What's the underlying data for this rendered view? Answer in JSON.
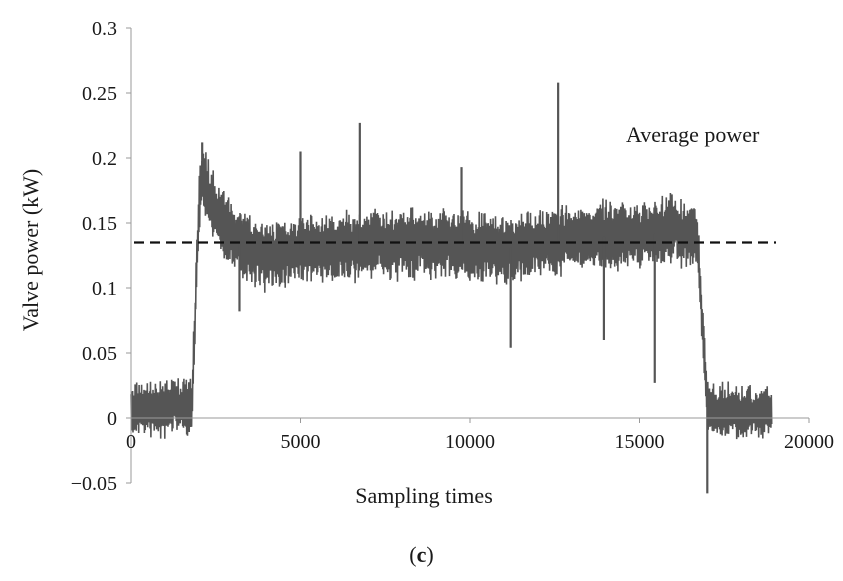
{
  "chart_data": {
    "type": "line",
    "ylabel": "Valve power (kW)",
    "xlabel": "Sampling times",
    "xlim": [
      0,
      20000
    ],
    "ylim": [
      -0.05,
      0.3
    ],
    "x_ticks": [
      "0",
      "5000",
      "10000",
      "15000",
      "20000"
    ],
    "y_ticks": [
      "0.3",
      "0.25",
      "0.2",
      "0.15",
      "0.1",
      "0.05",
      "0",
      "−0.05"
    ],
    "grid": false,
    "series": [
      {
        "x": [
          0,
          1800,
          2000,
          2100,
          2300,
          2600,
          3000,
          3500,
          4000,
          5000,
          6000,
          7000,
          8000,
          9000,
          10000,
          11000,
          12000,
          13000,
          14000,
          15000,
          16000,
          16700,
          17000,
          17200,
          18000,
          18900
        ],
        "y": [
          0.005,
          0.01,
          0.16,
          0.19,
          0.17,
          0.155,
          0.14,
          0.13,
          0.125,
          0.13,
          0.132,
          0.133,
          0.135,
          0.135,
          0.132,
          0.13,
          0.135,
          0.138,
          0.14,
          0.14,
          0.145,
          0.14,
          0.01,
          0.005,
          0.005,
          0.005
        ],
        "color": "#555555"
      },
      {
        "x": [
          0,
          20000
        ],
        "y": [
          0.135,
          0.135
        ],
        "style": "dashed",
        "color": "#111111"
      }
    ],
    "spikes": [
      {
        "x": 2100,
        "y": 0.212
      },
      {
        "x": 3200,
        "y": 0.082
      },
      {
        "x": 5000,
        "y": 0.205
      },
      {
        "x": 6750,
        "y": 0.227
      },
      {
        "x": 9750,
        "y": 0.193
      },
      {
        "x": 11200,
        "y": 0.054
      },
      {
        "x": 12600,
        "y": 0.258
      },
      {
        "x": 13950,
        "y": 0.06
      },
      {
        "x": 15450,
        "y": 0.027
      },
      {
        "x": 17000,
        "y": -0.058
      }
    ],
    "annotations": [
      "Average power"
    ]
  },
  "panel_label": {
    "open": "(",
    "letter": "c",
    "close": ")"
  }
}
